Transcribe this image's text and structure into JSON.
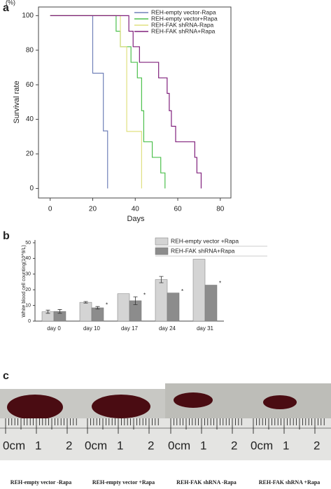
{
  "chart_data": [
    {
      "type": "line",
      "panel": "a",
      "y_unit_label": "(%)",
      "ylabel": "Survival rate",
      "xlabel": "Days",
      "xlim": [
        -5.5,
        85
      ],
      "ylim": [
        -5.5,
        105
      ],
      "xticks": [
        0,
        20,
        40,
        60,
        80
      ],
      "yticks": [
        0,
        20,
        40,
        60,
        80,
        100
      ],
      "legend": "upper right",
      "series": [
        {
          "name": "REH-empty vector-Rapa",
          "color": "#7080b8",
          "x": [
            0,
            20,
            20,
            25,
            25,
            27,
            27
          ],
          "values": [
            100,
            100,
            66.7,
            66.7,
            33.3,
            33.3,
            0
          ]
        },
        {
          "name": "REH-empty vector+Rapa",
          "color": "#4cc04c",
          "x": [
            0,
            31,
            31,
            33,
            33,
            38,
            38,
            41,
            41,
            43,
            43,
            44,
            44,
            48,
            48,
            52,
            52,
            54,
            54
          ],
          "values": [
            100,
            100,
            91,
            91,
            82,
            82,
            73,
            73,
            64,
            64,
            45,
            45,
            27,
            27,
            18,
            18,
            9,
            9,
            0
          ]
        },
        {
          "name": "REH-FAK shRNA-Rapa",
          "color": "#e0e080",
          "x": [
            0,
            33,
            33,
            36,
            36,
            43,
            43
          ],
          "values": [
            100,
            100,
            82,
            82,
            33,
            33,
            0
          ]
        },
        {
          "name": "REH-FAK shRNA+Rapa",
          "color": "#80207c",
          "x": [
            0,
            37,
            37,
            39,
            39,
            42,
            42,
            51,
            51,
            55,
            55,
            56,
            56,
            57,
            57,
            59,
            59,
            68,
            68,
            69,
            69,
            71,
            71
          ],
          "values": [
            100,
            100,
            91,
            91,
            82,
            82,
            73,
            73,
            64,
            64,
            55,
            55,
            45,
            45,
            36,
            36,
            27,
            27,
            18,
            18,
            9,
            9,
            0
          ]
        }
      ]
    },
    {
      "type": "bar",
      "panel": "b",
      "ylabel": "White blood cell counting(10^9/L)",
      "categories": [
        "day 0",
        "day 10",
        "day 17",
        "day 24",
        "day 31"
      ],
      "ylim": [
        0,
        50
      ],
      "yticks": [
        0,
        10,
        20,
        30,
        40,
        50
      ],
      "legend": "upper center",
      "series": [
        {
          "name": "REH-empty vector +Rapa",
          "color": "#d4d4d4",
          "values": [
            6,
            12,
            17.5,
            26.5,
            39.5
          ],
          "errors": [
            1,
            0.5,
            null,
            2,
            null
          ]
        },
        {
          "name": "REH-FAK shRNA+Rapa",
          "color": "#8c8c8c",
          "values": [
            6.2,
            8.5,
            13,
            18,
            23
          ],
          "errors": [
            1.2,
            0.8,
            2.5,
            null,
            null
          ],
          "annotations": [
            null,
            "*",
            "*",
            "*",
            "*"
          ]
        }
      ]
    }
  ],
  "panel_c": {
    "panel": "c",
    "ruler_labels": [
      "0cm",
      "1",
      "2"
    ],
    "captions": [
      "REH-empty vector -Rapa",
      "REH-empty vector +Rapa",
      "REH-FAK shRNA -Rapa",
      "REH-FAK shRNA +Rapa"
    ]
  }
}
